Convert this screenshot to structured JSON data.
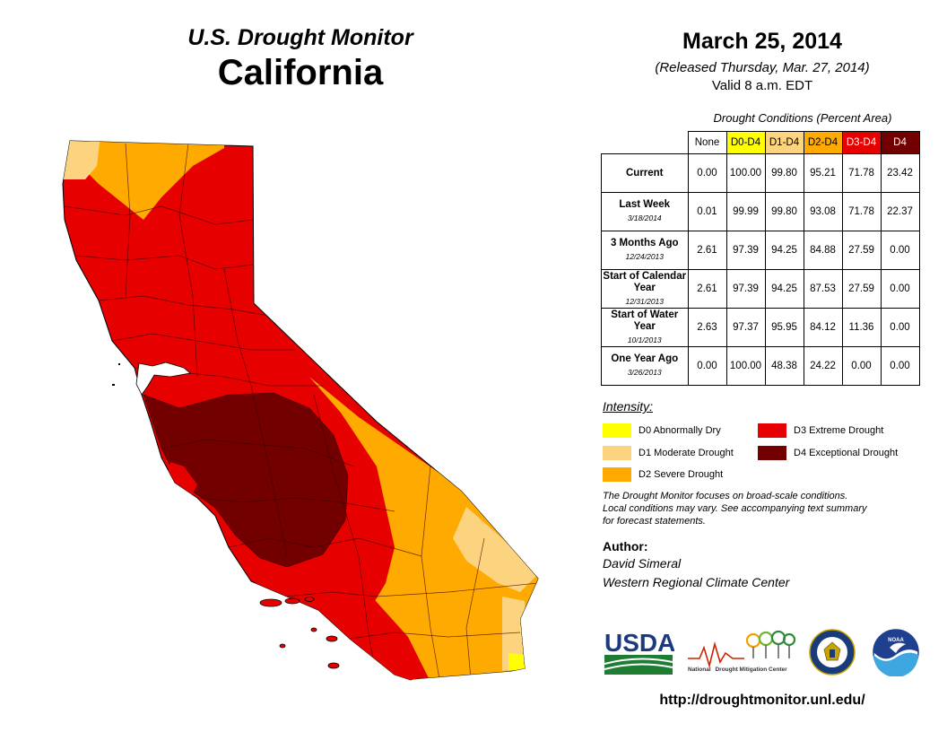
{
  "header": {
    "product": "U.S. Drought Monitor",
    "state": "California",
    "date": "March 25, 2014",
    "released": "(Released Thursday, Mar. 27, 2014)",
    "valid": "Valid 8 a.m. EDT"
  },
  "table": {
    "caption": "Drought Conditions (Percent Area)",
    "columns": [
      "None",
      "D0-D4",
      "D1-D4",
      "D2-D4",
      "D3-D4",
      "D4"
    ],
    "rows": [
      {
        "label": "Current",
        "date": "",
        "values": [
          "0.00",
          "100.00",
          "99.80",
          "95.21",
          "71.78",
          "23.42"
        ]
      },
      {
        "label": "Last Week",
        "date": "3/18/2014",
        "values": [
          "0.01",
          "99.99",
          "99.80",
          "93.08",
          "71.78",
          "22.37"
        ]
      },
      {
        "label": "3 Months Ago",
        "date": "12/24/2013",
        "values": [
          "2.61",
          "97.39",
          "94.25",
          "84.88",
          "27.59",
          "0.00"
        ]
      },
      {
        "label": "Start of Calendar Year",
        "date": "12/31/2013",
        "values": [
          "2.61",
          "97.39",
          "94.25",
          "87.53",
          "27.59",
          "0.00"
        ]
      },
      {
        "label": "Start of Water Year",
        "date": "10/1/2013",
        "values": [
          "2.63",
          "97.37",
          "95.95",
          "84.12",
          "11.36",
          "0.00"
        ]
      },
      {
        "label": "One Year Ago",
        "date": "3/26/2013",
        "values": [
          "0.00",
          "100.00",
          "48.38",
          "24.22",
          "0.00",
          "0.00"
        ]
      }
    ]
  },
  "legend": {
    "title": "Intensity:",
    "items": [
      {
        "label": "D0 Abnormally Dry",
        "color": "#ffff00"
      },
      {
        "label": "D1 Moderate Drought",
        "color": "#fcd37f"
      },
      {
        "label": "D2 Severe Drought",
        "color": "#ffaa00"
      },
      {
        "label": "D3 Extreme Drought",
        "color": "#e60000"
      },
      {
        "label": "D4 Exceptional Drought",
        "color": "#730000"
      }
    ]
  },
  "note": {
    "line1": "The Drought Monitor focuses on broad-scale conditions.",
    "line2": "Local conditions may vary. See accompanying text summary",
    "line3": "for forecast statements."
  },
  "author": {
    "label": "Author:",
    "name": "David Simeral",
    "org": "Western Regional Climate Center"
  },
  "logos": {
    "usda": "USDA",
    "ndmc_line1": "National",
    "ndmc_line2": "Drought Mitigation Center",
    "noaa": "NOAA"
  },
  "url": "http://droughtmonitor.unl.edu/",
  "colors": {
    "none": "#ffffff",
    "d0": "#ffff00",
    "d1": "#fcd37f",
    "d2": "#ffaa00",
    "d3": "#e60000",
    "d4": "#730000"
  }
}
